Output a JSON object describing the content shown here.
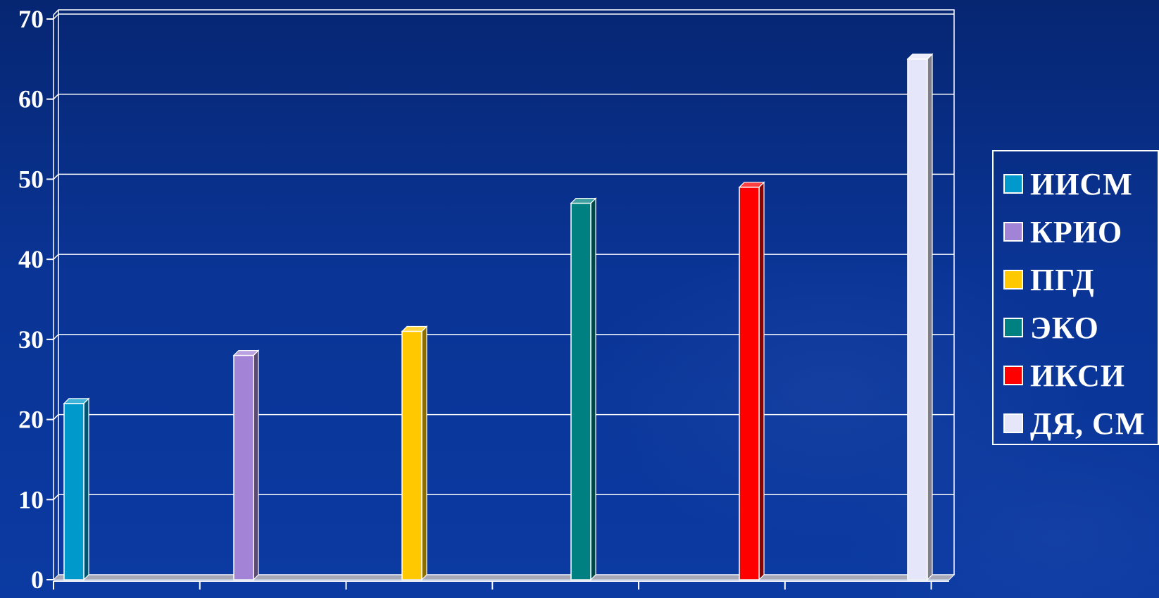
{
  "chart_data": {
    "type": "bar",
    "title": "",
    "xlabel": "",
    "ylabel": "",
    "ylim": [
      0,
      70
    ],
    "y_ticks": [
      "0",
      "10",
      "20",
      "30",
      "40",
      "50",
      "60",
      "70"
    ],
    "grid": true,
    "legend_position": "right",
    "series": [
      {
        "name": "ИИСМ",
        "value": 22,
        "color": "#0099cc"
      },
      {
        "name": "КРИО",
        "value": 28,
        "color": "#a383d6"
      },
      {
        "name": "ПГД",
        "value": 31,
        "color": "#ffc800"
      },
      {
        "name": "ЭКО",
        "value": 47,
        "color": "#008080"
      },
      {
        "name": "ИКСИ",
        "value": 49,
        "color": "#ff0000"
      },
      {
        "name": "ДЯ, СМ",
        "value": 65,
        "color": "#e6e6fa"
      }
    ]
  },
  "colors": {
    "background": "#0a3495",
    "gridline": "#ffffff",
    "axis": "#ffffff",
    "floor": "#a8a8b8"
  }
}
